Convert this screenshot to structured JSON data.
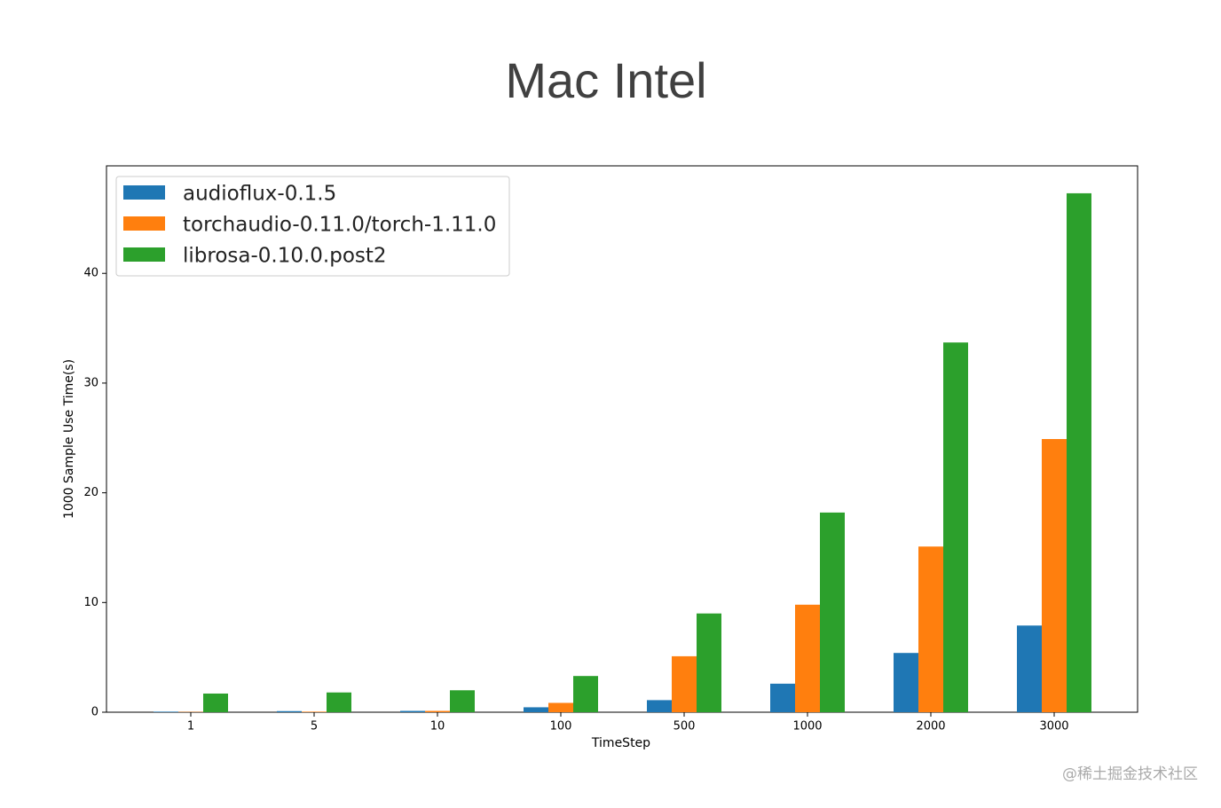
{
  "chart_data": {
    "type": "bar",
    "title": "Mac  Intel",
    "x_label": "TimeStep",
    "y_label": "1000 Sample Use Time(s)",
    "categories": [
      "1",
      "5",
      "10",
      "100",
      "500",
      "1000",
      "2000",
      "3000"
    ],
    "series": [
      {
        "name": "audioflux-0.1.5",
        "color": "#1f77b4",
        "values": [
          0.05,
          0.1,
          0.12,
          0.45,
          1.1,
          2.6,
          5.4,
          7.9
        ]
      },
      {
        "name": "torchaudio-0.11.0/torch-1.11.0",
        "color": "#ff7f0e",
        "values": [
          0.03,
          0.05,
          0.12,
          0.85,
          5.1,
          9.8,
          15.1,
          24.9
        ]
      },
      {
        "name": "librosa-0.10.0.post2",
        "color": "#2ca02c",
        "values": [
          1.7,
          1.8,
          2.0,
          3.3,
          9.0,
          18.2,
          33.7,
          47.3
        ]
      }
    ],
    "ylim": [
      0,
      49.8
    ],
    "yticks": [
      0,
      10,
      20,
      30,
      40
    ],
    "grid": false,
    "legend": "upper-left"
  },
  "watermark": "@稀土掘金技术社区"
}
